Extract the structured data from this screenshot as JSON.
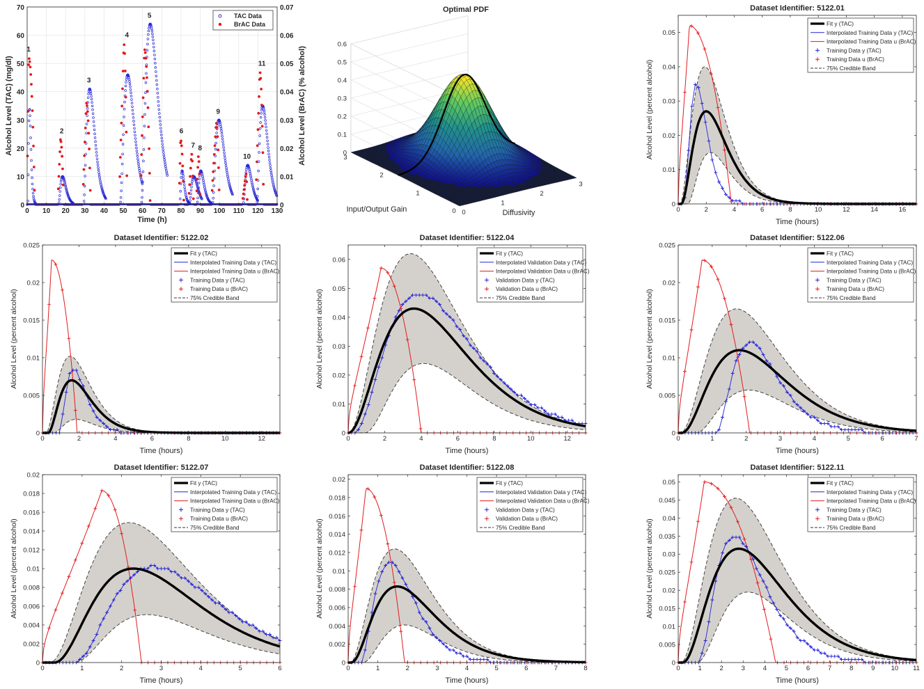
{
  "chart_data": [
    {
      "type": "scatter",
      "title": "",
      "xlabel": "Time (h)",
      "ylabel": "Alcohol Level (TAC) (mg/dl)",
      "ylabel_right": "Alcohol Level (BrAC) (% alcohol)",
      "xlim": [
        0,
        130
      ],
      "ylim": [
        0,
        70
      ],
      "ylim_right": [
        0,
        0.07
      ],
      "xticks": [
        "0",
        "10",
        "20",
        "30",
        "40",
        "50",
        "60",
        "70",
        "80",
        "90",
        "100",
        "110",
        "120",
        "130"
      ],
      "yticks": [
        "0",
        "10",
        "20",
        "30",
        "40",
        "50",
        "60",
        "70"
      ],
      "yticks_right": [
        "0",
        "0.01",
        "0.02",
        "0.03",
        "0.04",
        "0.05",
        "0.06",
        "0.07"
      ],
      "grid": true,
      "legend": {
        "position": "top-right",
        "entries": [
          "TAC Data",
          "BrAC Data"
        ]
      },
      "episodes": [
        {
          "label": "1",
          "t0": 0,
          "bpeak": 0.052,
          "btime": 0.8,
          "bdur": 4,
          "tpeak": 34,
          "ttime": 1.2,
          "tdur": 9
        },
        {
          "label": "2",
          "t0": 16,
          "bpeak": 0.023,
          "btime": 17.3,
          "bdur": 3,
          "tpeak": 10,
          "ttime": 18.4,
          "tdur": 6
        },
        {
          "label": "3",
          "t0": 29,
          "bpeak": 0.036,
          "btime": 30.8,
          "bdur": 4,
          "tpeak": 41,
          "ttime": 32.5,
          "tdur": 10
        },
        {
          "label": "4",
          "t0": 48,
          "bpeak": 0.057,
          "btime": 50.3,
          "bdur": 4,
          "tpeak": 46,
          "ttime": 52.3,
          "tdur": 10
        },
        {
          "label": "5",
          "t0": 59,
          "bpeak": 0.055,
          "btime": 61,
          "bdur": 5,
          "tpeak": 64,
          "ttime": 64,
          "tdur": 12
        },
        {
          "label": "6",
          "t0": 79,
          "bpeak": 0.023,
          "btime": 79.8,
          "bdur": 2.5,
          "tpeak": 12,
          "ttime": 80.6,
          "tdur": 5
        },
        {
          "label": "7",
          "t0": 84,
          "bpeak": 0.018,
          "btime": 85.5,
          "bdur": 2.5,
          "tpeak": 10,
          "ttime": 86.7,
          "tdur": 5
        },
        {
          "label": "8",
          "t0": 88,
          "bpeak": 0.017,
          "btime": 89,
          "bdur": 2,
          "tpeak": 12,
          "ttime": 90.3,
          "tdur": 6
        },
        {
          "label": "9",
          "t0": 96,
          "bpeak": 0.029,
          "btime": 98.3,
          "bdur": 4,
          "tpeak": 30,
          "ttime": 99.7,
          "tdur": 9
        },
        {
          "label": "10",
          "t0": 112,
          "bpeak": 0.011,
          "btime": 113.8,
          "bdur": 2.5,
          "tpeak": 14,
          "ttime": 114.7,
          "tdur": 6
        },
        {
          "label": "11",
          "t0": 119,
          "bpeak": 0.047,
          "btime": 121,
          "bdur": 4,
          "tpeak": 35,
          "ttime": 122.5,
          "tdur": 9
        }
      ]
    },
    {
      "type": "surface",
      "title": "Optimal PDF",
      "xlabel": "Input/Output Gain",
      "ylabel": "Diffusivity",
      "zticks": [
        "0",
        "0.1",
        "0.2",
        "0.3",
        "0.4",
        "0.5",
        "0.6"
      ],
      "gain_ticks": [
        "0",
        "1",
        "2",
        "3"
      ],
      "diff_ticks": [
        "0",
        "1",
        "2",
        "3"
      ],
      "peak_value": 0.47,
      "peak_gain": 1.7,
      "peak_diffusivity": 1.7
    },
    {
      "type": "line",
      "title": "Dataset Identifier: 5122.01",
      "xlabel": "Time (hours)",
      "ylabel": "Alcohol Level (percent alcohol)",
      "xlim": [
        0,
        17
      ],
      "ylim": [
        0,
        0.055
      ],
      "xticks": [
        0,
        2,
        4,
        6,
        8,
        10,
        12,
        14,
        16
      ],
      "yticks": [
        0,
        0.01,
        0.02,
        0.03,
        0.04,
        0.05
      ],
      "ytick_labels": [
        "0",
        "0.01",
        "0.02",
        "0.03",
        "0.04",
        "0.05"
      ],
      "legend": {
        "position": "top-right",
        "entries": [
          "Fit y (TAC)",
          "Interpolated Training Data y (TAC)",
          "Interpolated Training Data u (BrAC)",
          "Training Data y (TAC)",
          "Training Data u (BrAC)",
          "75% Credible Band"
        ]
      },
      "series": [
        {
          "name": "Fit y (TAC)",
          "peak": 0.027,
          "peak_time": 2.0,
          "onset": 0.2
        },
        {
          "name": "Training Data y (TAC)",
          "peak": 0.035,
          "peak_time": 1.3,
          "onset": 0.4
        },
        {
          "name": "Training Data u (BrAC)",
          "peak": 0.052,
          "peak_time": 0.8,
          "end_time": 3.8
        },
        {
          "name": "75% Credible Band",
          "upper_peak": 0.04,
          "lower_peak": 0.015
        }
      ]
    },
    {
      "type": "line",
      "title": "Dataset Identifier: 5122.02",
      "xlabel": "Time (hours)",
      "ylabel": "Alcohol Level (percent alcohol)",
      "xlim": [
        0,
        13
      ],
      "ylim": [
        0,
        0.025
      ],
      "xticks": [
        0,
        2,
        4,
        6,
        8,
        10,
        12
      ],
      "yticks": [
        0,
        0.005,
        0.01,
        0.015,
        0.02,
        0.025
      ],
      "ytick_labels": [
        "0",
        "0.005",
        "0.01",
        "0.015",
        "0.02",
        "0.025"
      ],
      "legend": {
        "position": "top-right",
        "entries": [
          "Fit y (TAC)",
          "Interpolated Training Data y (TAC)",
          "Interpolated Training Data u (BrAC)",
          "Training Data y (TAC)",
          "Training Data u (BrAC)",
          "75% Credible Band"
        ]
      },
      "series": [
        {
          "name": "Fit y (TAC)",
          "peak": 0.007,
          "peak_time": 1.6,
          "onset": 0.3
        },
        {
          "name": "Training Data y (TAC)",
          "peak": 0.0085,
          "peak_time": 1.7,
          "onset": 0.9
        },
        {
          "name": "Training Data u (BrAC)",
          "peak": 0.023,
          "peak_time": 0.5,
          "end_time": 1.9
        },
        {
          "name": "75% Credible Band",
          "upper_peak": 0.0102,
          "lower_peak": 0.0018
        }
      ]
    },
    {
      "type": "line",
      "title": "Dataset Identifier: 5122.04",
      "xlabel": "Time (hours)",
      "ylabel": "Alcohol Level (percent alcohol)",
      "xlim": [
        0,
        13
      ],
      "ylim": [
        0,
        0.065
      ],
      "xticks": [
        0,
        2,
        4,
        6,
        8,
        10,
        12
      ],
      "yticks": [
        0,
        0.01,
        0.02,
        0.03,
        0.04,
        0.05,
        0.06
      ],
      "ytick_labels": [
        "0",
        "0.01",
        "0.02",
        "0.03",
        "0.04",
        "0.05",
        "0.06"
      ],
      "legend": {
        "position": "top-right",
        "entries": [
          "Fit y (TAC)",
          "Interpolated Validation Data y (TAC)",
          "Interpolated Validation Data u (BrAC)",
          "Validation Data y (TAC)",
          "Validation Data u (BrAC)",
          "75% Credible Band"
        ]
      },
      "series": [
        {
          "name": "Fit y (TAC)",
          "peak": 0.043,
          "peak_time": 3.6,
          "onset": 0.0
        },
        {
          "name": "Validation Data y (TAC)",
          "peak": 0.048,
          "peak_time": 3.9,
          "onset": 0.3
        },
        {
          "name": "Validation Data u (BrAC)",
          "peak": 0.057,
          "peak_time": 1.8,
          "end_time": 4.0
        },
        {
          "name": "75% Credible Band",
          "upper_peak": 0.062,
          "lower_peak": 0.024
        }
      ]
    },
    {
      "type": "line",
      "title": "Dataset Identifier: 5122.06",
      "xlabel": "Time (hours)",
      "ylabel": "Alcohol Level (percent alcohol)",
      "xlim": [
        0,
        7
      ],
      "ylim": [
        0,
        0.025
      ],
      "xticks": [
        0,
        1,
        2,
        3,
        4,
        5,
        6,
        7
      ],
      "yticks": [
        0,
        0.005,
        0.01,
        0.015,
        0.02,
        0.025
      ],
      "ytick_labels": [
        "0",
        "0.005",
        "0.01",
        "0.015",
        "0.02",
        "0.025"
      ],
      "legend": {
        "position": "top-right",
        "entries": [
          "Fit y (TAC)",
          "Interpolated Training Data y (TAC)",
          "Interpolated Training Data u (BrAC)",
          "Training Data y (TAC)",
          "Training Data u (BrAC)",
          "75% Credible Band"
        ]
      },
      "series": [
        {
          "name": "Fit y (TAC)",
          "peak": 0.011,
          "peak_time": 1.8,
          "onset": 0.1
        },
        {
          "name": "Training Data y (TAC)",
          "peak": 0.012,
          "peak_time": 2.1,
          "onset": 1.1
        },
        {
          "name": "Training Data u (BrAC)",
          "peak": 0.023,
          "peak_time": 0.7,
          "end_time": 2.1
        },
        {
          "name": "75% Credible Band",
          "upper_peak": 0.0165,
          "lower_peak": 0.0057
        }
      ]
    },
    {
      "type": "line",
      "title": "Dataset Identifier: 5122.07",
      "xlabel": "Time (hours)",
      "ylabel": "Alcohol Level (percent alcohol)",
      "xlim": [
        0,
        6
      ],
      "ylim": [
        0,
        0.02
      ],
      "xticks": [
        0,
        1,
        2,
        3,
        4,
        5,
        6
      ],
      "yticks": [
        0,
        0.002,
        0.004,
        0.006,
        0.008,
        0.01,
        0.012,
        0.014,
        0.016,
        0.018,
        0.02
      ],
      "ytick_labels": [
        "0",
        "0.002",
        "0.004",
        "0.006",
        "0.008",
        "0.01",
        "0.012",
        "0.014",
        "0.016",
        "0.018",
        "0.02"
      ],
      "legend": {
        "position": "top-right",
        "entries": [
          "Fit y (TAC)",
          "Interpolated Training Data y (TAC)",
          "Interpolated Training Data u (BrAC)",
          "Training Data y (TAC)",
          "Training Data u (BrAC)",
          "75% Credible Band"
        ]
      },
      "series": [
        {
          "name": "Fit y (TAC)",
          "peak": 0.01,
          "peak_time": 2.3,
          "onset": 0.3
        },
        {
          "name": "Training Data y (TAC)",
          "peak": 0.0102,
          "peak_time": 2.8,
          "onset": 0.8
        },
        {
          "name": "Training Data u (BrAC)",
          "peak": 0.0183,
          "peak_time": 1.5,
          "end_time": 2.5
        },
        {
          "name": "75% Credible Band",
          "upper_peak": 0.0149,
          "lower_peak": 0.0051
        }
      ]
    },
    {
      "type": "line",
      "title": "Dataset Identifier: 5122.08",
      "xlabel": "Time (hours)",
      "ylabel": "Alcohol Level (percent alcohol)",
      "xlim": [
        0,
        8
      ],
      "ylim": [
        0,
        0.0205
      ],
      "xticks": [
        0,
        1,
        2,
        3,
        4,
        5,
        6,
        7,
        8
      ],
      "yticks": [
        0,
        0.002,
        0.004,
        0.006,
        0.008,
        0.01,
        0.012,
        0.014,
        0.016,
        0.018,
        0.02
      ],
      "ytick_labels": [
        "0",
        "0.002",
        "0.004",
        "0.006",
        "0.008",
        "0.01",
        "0.012",
        "0.014",
        "0.016",
        "0.018",
        "0.02"
      ],
      "legend": {
        "position": "top-right",
        "entries": [
          "Fit y (TAC)",
          "Interpolated Validation Data y (TAC)",
          "Interpolated Validation Data u (BrAC)",
          "Validation Data y (TAC)",
          "Validation Data u (BrAC)",
          "75% Credible Band"
        ]
      },
      "series": [
        {
          "name": "Fit y (TAC)",
          "peak": 0.0083,
          "peak_time": 1.65,
          "onset": 0.1
        },
        {
          "name": "Validation Data y (TAC)",
          "peak": 0.011,
          "peak_time": 1.4,
          "onset": 0.4
        },
        {
          "name": "Validation Data u (BrAC)",
          "peak": 0.019,
          "peak_time": 0.6,
          "end_time": 1.9
        },
        {
          "name": "75% Credible Band",
          "upper_peak": 0.0124,
          "lower_peak": 0.0041
        }
      ]
    },
    {
      "type": "line",
      "title": "Dataset Identifier: 5122.11",
      "xlabel": "Time (hours)",
      "ylabel": "Alcohol Level (percent alcohol)",
      "xlim": [
        0,
        11
      ],
      "ylim": [
        0,
        0.052
      ],
      "xticks": [
        0,
        1,
        2,
        3,
        4,
        5,
        6,
        7,
        8,
        9,
        10,
        11
      ],
      "yticks": [
        0,
        0.005,
        0.01,
        0.015,
        0.02,
        0.025,
        0.03,
        0.035,
        0.04,
        0.045,
        0.05
      ],
      "ytick_labels": [
        "0",
        "0.005",
        "0.01",
        "0.015",
        "0.02",
        "0.025",
        "0.03",
        "0.035",
        "0.04",
        "0.045",
        "0.05"
      ],
      "legend": {
        "position": "top-right",
        "entries": [
          "Fit y (TAC)",
          "Interpolated Training Data y (TAC)",
          "Interpolated Training Data u (BrAC)",
          "Training Data y (TAC)",
          "Training Data u (BrAC)",
          "75% Credible Band"
        ]
      },
      "series": [
        {
          "name": "Fit y (TAC)",
          "peak": 0.0315,
          "peak_time": 2.8,
          "onset": 0.2
        },
        {
          "name": "Training Data y (TAC)",
          "peak": 0.035,
          "peak_time": 2.6,
          "onset": 0.9
        },
        {
          "name": "Training Data u (BrAC)",
          "peak": 0.05,
          "peak_time": 1.2,
          "end_time": 4.5
        },
        {
          "name": "75% Credible Band",
          "upper_peak": 0.0455,
          "lower_peak": 0.0195
        }
      ]
    }
  ],
  "colors": {
    "fit": "#000000",
    "band_fill": "#d4d1cc",
    "tac": "#2323d6",
    "brac": "#e31a1c",
    "grid": "#e4e4e4"
  }
}
